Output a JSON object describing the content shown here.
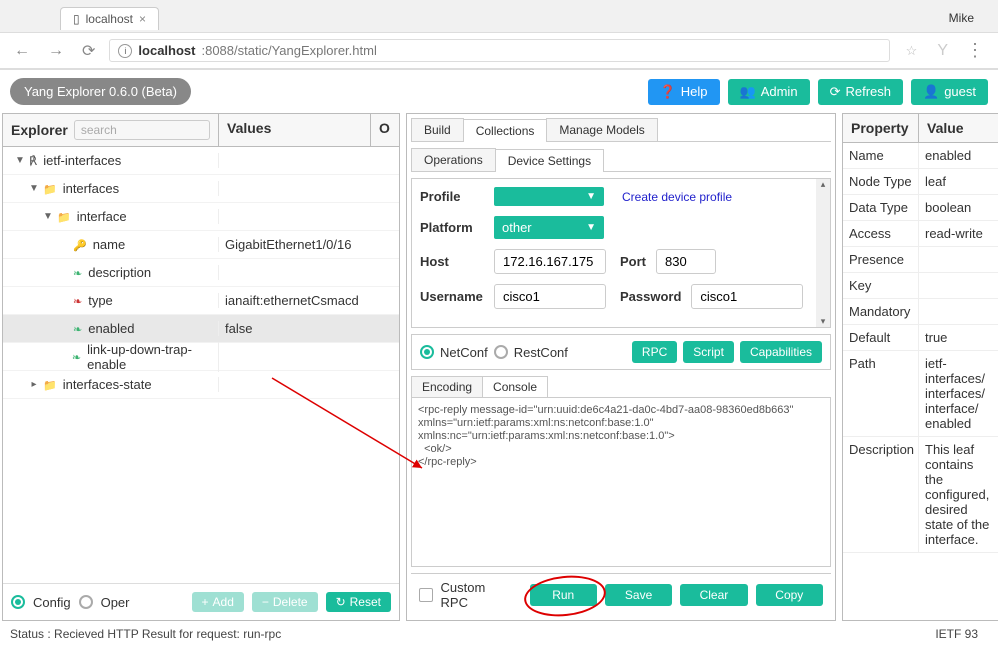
{
  "chrome": {
    "tab_title": "localhost",
    "user": "Mike",
    "url_host": "localhost",
    "url_rest": ":8088/static/YangExplorer.html"
  },
  "header": {
    "app_title": "Yang Explorer 0.6.0 (Beta)",
    "help": "Help",
    "admin": "Admin",
    "refresh": "Refresh",
    "guest": "guest"
  },
  "explorer": {
    "title": "Explorer",
    "search_placeholder": "search",
    "values_title": "Values",
    "op_title": "O",
    "tree": [
      {
        "name": "ietf-interfaces",
        "pad": 0,
        "icon": "root",
        "twist": "▼"
      },
      {
        "name": "interfaces",
        "pad": 1,
        "icon": "fold",
        "twist": "▼"
      },
      {
        "name": "interface",
        "pad": 2,
        "icon": "fold",
        "twist": "▼"
      },
      {
        "name": "name",
        "pad": 3,
        "icon": "key",
        "value": "GigabitEthernet1/0/16"
      },
      {
        "name": "description",
        "pad": 3,
        "icon": "leaf"
      },
      {
        "name": "type",
        "pad": 3,
        "icon": "leaf-red",
        "value": "ianaift:ethernetCsmacd"
      },
      {
        "name": "enabled",
        "pad": 3,
        "icon": "leaf",
        "value": "false",
        "selected": true
      },
      {
        "name": "link-up-down-trap-enable",
        "pad": 3,
        "icon": "leaf"
      },
      {
        "name": "interfaces-state",
        "pad": 1,
        "icon": "fold",
        "twist": "▸"
      }
    ],
    "footer": {
      "config": "Config",
      "oper": "Oper",
      "add": "Add",
      "delete": "Delete",
      "reset": "Reset"
    }
  },
  "center": {
    "tabs": {
      "build": "Build",
      "collections": "Collections",
      "manage": "Manage Models"
    },
    "subtabs": {
      "ops": "Operations",
      "dev": "Device Settings"
    },
    "form": {
      "profile_label": "Profile",
      "create_profile": "Create device profile",
      "platform_label": "Platform",
      "platform_value": "other",
      "host_label": "Host",
      "host_value": "172.16.167.175",
      "port_label": "Port",
      "port_value": "830",
      "user_label": "Username",
      "user_value": "cisco1",
      "pass_label": "Password",
      "pass_value": "cisco1"
    },
    "proto": {
      "netconf": "NetConf",
      "restconf": "RestConf",
      "rpc": "RPC",
      "script": "Script",
      "caps": "Capabilities"
    },
    "enc_tabs": {
      "encoding": "Encoding",
      "console": "Console"
    },
    "console_text": "<rpc-reply message-id=\"urn:uuid:de6c4a21-da0c-4bd7-aa08-98360ed8b663\"\nxmlns=\"urn:ietf:params:xml:ns:netconf:base:1.0\"\nxmlns:nc=\"urn:ietf:params:xml:ns:netconf:base:1.0\">\n  <ok/>\n</rpc-reply>",
    "footer": {
      "custom": "Custom RPC",
      "run": "Run",
      "save": "Save",
      "clear": "Clear",
      "copy": "Copy"
    }
  },
  "props": {
    "title_prop": "Property",
    "title_val": "Value",
    "rows": [
      {
        "k": "Name",
        "v": "enabled"
      },
      {
        "k": "Node Type",
        "v": "leaf"
      },
      {
        "k": "Data Type",
        "v": "boolean"
      },
      {
        "k": "Access",
        "v": "read-write"
      },
      {
        "k": "Presence",
        "v": ""
      },
      {
        "k": "Key",
        "v": ""
      },
      {
        "k": "Mandatory",
        "v": ""
      },
      {
        "k": "Default",
        "v": "true"
      },
      {
        "k": "Path",
        "v": "ietf-interfaces/ interfaces/ interface/ enabled"
      },
      {
        "k": "Description",
        "v": "This leaf contains the configured, desired state of the interface."
      }
    ]
  },
  "status": {
    "left": "Status : Recieved HTTP Result for request: run-rpc",
    "right": "IETF 93"
  }
}
